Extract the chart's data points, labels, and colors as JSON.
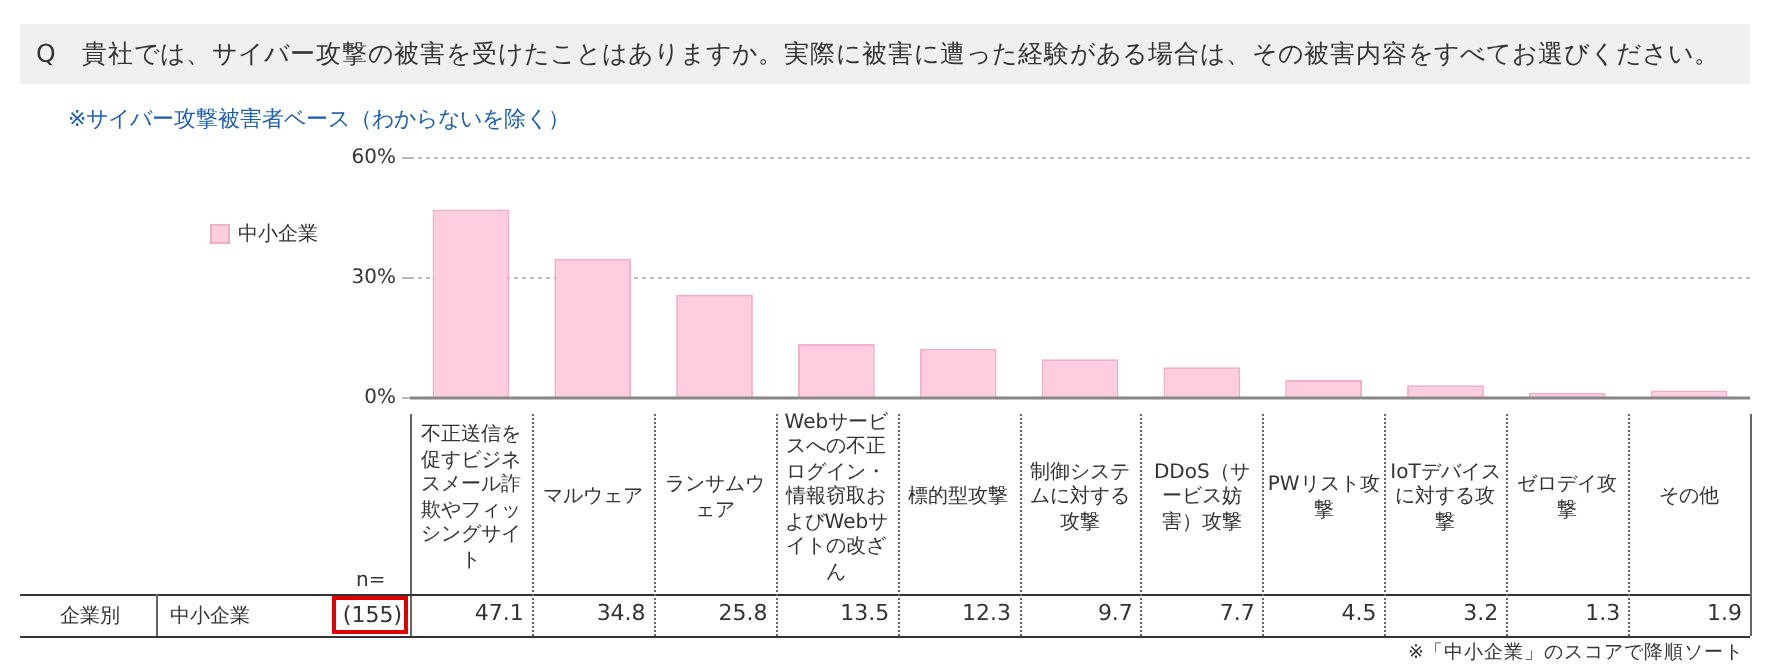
{
  "chart_data": {
    "type": "bar",
    "title": "Q　貴社では、サイバー攻撃の被害を受けたことはありますか。実際に被害に遭った経験がある場合は、その被害内容をすべてお選びください。",
    "subtitle": "※サイバー攻撃被害者ベース（わからないを除く）",
    "categories": [
      "不正送信を促すビジネスメール詐欺やフィッシングサイト",
      "マルウェア",
      "ランサムウェア",
      "Webサービスへの不正ログイン・情報窃取およびWebサイトの改ざん",
      "標的型攻撃",
      "制御システムに対する攻撃",
      "DDoS（サービス妨害）攻撃",
      "PWリスト攻撃",
      "IoTデバイスに対する攻撃",
      "ゼロデイ攻撃",
      "その他"
    ],
    "series": [
      {
        "name": "中小企業",
        "color": "#ffcce0",
        "values": [
          47.1,
          34.8,
          25.8,
          13.5,
          12.3,
          9.7,
          7.7,
          4.5,
          3.2,
          1.3,
          1.9
        ]
      }
    ],
    "ylim": [
      0,
      60
    ],
    "yticks": [
      {
        "value": 0,
        "label": "0%"
      },
      {
        "value": 30,
        "label": "30%"
      },
      {
        "value": 60,
        "label": "60%"
      }
    ],
    "grid": "y",
    "legend": "left",
    "data_labels": true,
    "annotations": [
      "企業別",
      "n=",
      "(155)",
      "※「中小企業」のスコアで降順ソート"
    ]
  }
}
